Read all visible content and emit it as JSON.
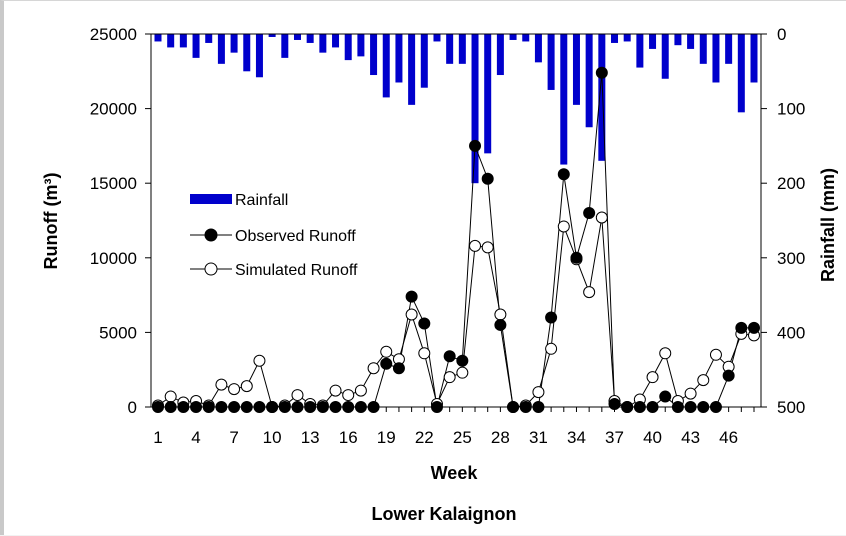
{
  "chart_data": {
    "type": "bar+line",
    "title": "Lower Kalaignon",
    "xlabel": "Week",
    "ylabel_left": "Runoff (m³)",
    "ylabel_right": "Rainfall (mm)",
    "y_left_range": [
      0,
      25000
    ],
    "y_left_ticks": [
      "0",
      "5000",
      "10000",
      "15000",
      "20000",
      "25000"
    ],
    "y_right_range": [
      0,
      500
    ],
    "y_right_inverted": true,
    "y_right_ticks": [
      "0",
      "100",
      "200",
      "300",
      "400",
      "500"
    ],
    "x_range": [
      1,
      48
    ],
    "x_ticks": [
      "1",
      "4",
      "7",
      "10",
      "13",
      "16",
      "19",
      "22",
      "25",
      "28",
      "31",
      "34",
      "37",
      "40",
      "43",
      "46"
    ],
    "grid": false,
    "legend_position": "left-middle",
    "colors": {
      "rainfall": "#0000cc",
      "observed": "#000000",
      "simulated": "#ffffff"
    },
    "series": [
      {
        "name": "Rainfall",
        "kind": "bar",
        "axis": "right",
        "values": [
          10,
          18,
          18,
          32,
          12,
          40,
          25,
          50,
          58,
          4,
          32,
          8,
          12,
          25,
          18,
          35,
          30,
          55,
          85,
          65,
          95,
          72,
          10,
          40,
          40,
          200,
          160,
          55,
          8,
          10,
          38,
          75,
          175,
          95,
          125,
          170,
          12,
          10,
          45,
          20,
          60,
          15,
          20,
          40,
          65,
          40,
          105,
          65
        ]
      },
      {
        "name": "Observed Runoff",
        "kind": "line",
        "axis": "left",
        "marker": "filled-circle",
        "values": [
          0,
          0,
          0,
          0,
          0,
          0,
          0,
          0,
          0,
          0,
          0,
          0,
          0,
          0,
          0,
          0,
          0,
          0,
          2900,
          2600,
          7400,
          5600,
          0,
          3400,
          3100,
          17500,
          15300,
          5500,
          0,
          0,
          0,
          6000,
          15600,
          10000,
          13000,
          22400,
          200,
          0,
          0,
          0,
          700,
          0,
          0,
          0,
          0,
          2100,
          5300,
          5300
        ]
      },
      {
        "name": "Simulated Runoff",
        "kind": "line",
        "axis": "left",
        "marker": "open-circle",
        "values": [
          100,
          700,
          300,
          400,
          100,
          1500,
          1200,
          1400,
          3100,
          0,
          100,
          800,
          200,
          100,
          1100,
          800,
          1100,
          2600,
          3700,
          3200,
          6200,
          3600,
          200,
          2000,
          2300,
          10800,
          10700,
          6200,
          0,
          100,
          1000,
          3900,
          12100,
          9900,
          7700,
          12700,
          400,
          0,
          500,
          2000,
          3600,
          400,
          900,
          1800,
          3500,
          2700,
          4900,
          4800
        ]
      }
    ]
  }
}
